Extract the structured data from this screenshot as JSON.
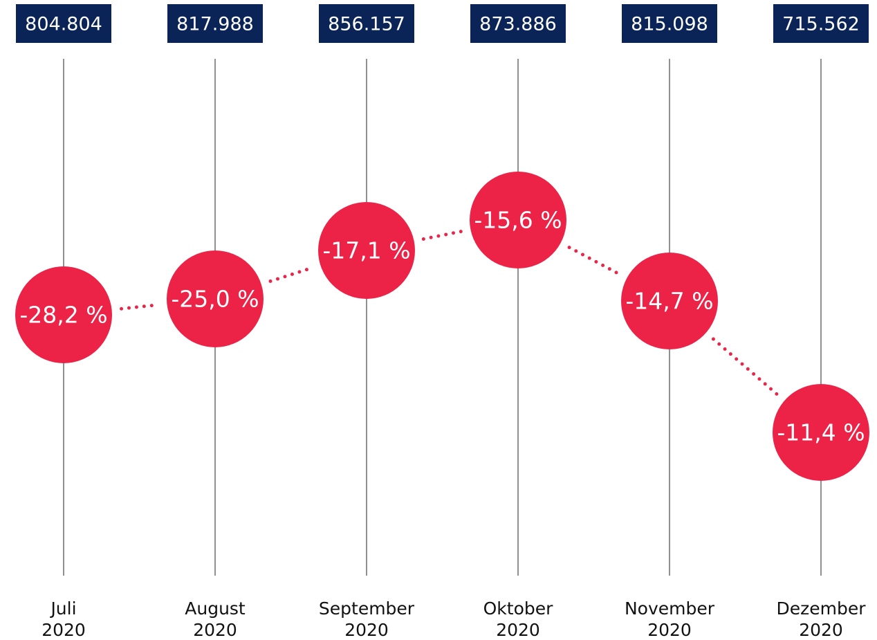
{
  "columns": [
    {
      "total": "804.804",
      "change": "-28,2 %",
      "month": "Juli",
      "year": "2020"
    },
    {
      "total": "817.988",
      "change": "-25,0 %",
      "month": "August",
      "year": "2020"
    },
    {
      "total": "856.157",
      "change": "-17,1 %",
      "month": "September",
      "year": "2020"
    },
    {
      "total": "873.886",
      "change": "-15,6 %",
      "month": "Oktober",
      "year": "2020"
    },
    {
      "total": "815.098",
      "change": "-14,7 %",
      "month": "November",
      "year": "2020"
    },
    {
      "total": "715.562",
      "change": "-11,4 %",
      "month": "Dezember",
      "year": "2020"
    }
  ]
}
